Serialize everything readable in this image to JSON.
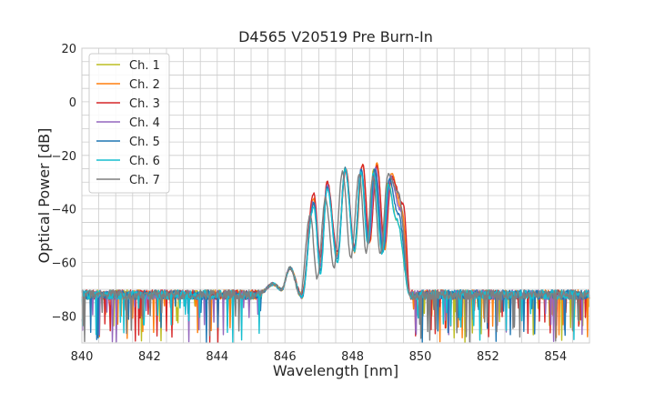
{
  "chart_data": {
    "type": "line",
    "title": "D4565 V20519 Pre Burn-In",
    "xlabel": "Wavelength [nm]",
    "ylabel": "Optical Power [dB]",
    "xlim": [
      840,
      855
    ],
    "ylim": [
      -90,
      20
    ],
    "x_ticks": [
      840,
      842,
      844,
      846,
      848,
      850,
      852,
      854
    ],
    "y_ticks": [
      20,
      0,
      -20,
      -40,
      -60,
      -80
    ],
    "x_tick_labels": [
      "840",
      "842",
      "844",
      "846",
      "848",
      "850",
      "852",
      "854"
    ],
    "y_tick_labels": [
      "20",
      "0",
      "−20",
      "−40",
      "−60",
      "−80"
    ],
    "x_minor_step": 0.5,
    "y_minor_step": 5,
    "grid": true,
    "legend_position": "top-left",
    "noise_floor_db": -72,
    "series": [
      {
        "name": "Ch. 1",
        "color": "#bcbd22",
        "peaks": [
          [
            845.65,
            -68
          ],
          [
            846.15,
            -62
          ],
          [
            846.85,
            -38
          ],
          [
            847.25,
            -31
          ],
          [
            847.78,
            -25
          ],
          [
            848.25,
            -26
          ],
          [
            848.62,
            -25
          ],
          [
            849.05,
            -30
          ],
          [
            849.3,
            -44
          ]
        ],
        "dips": [
          [
            845.9,
            -70
          ],
          [
            846.5,
            -73
          ],
          [
            847.05,
            -62
          ],
          [
            847.55,
            -58
          ],
          [
            848.05,
            -55
          ],
          [
            848.45,
            -51
          ],
          [
            848.88,
            -55
          ]
        ]
      },
      {
        "name": "Ch. 2",
        "color": "#ff7f0e",
        "peaks": [
          [
            845.65,
            -68
          ],
          [
            846.15,
            -62
          ],
          [
            846.85,
            -36
          ],
          [
            847.25,
            -30
          ],
          [
            847.8,
            -25
          ],
          [
            848.3,
            -23
          ],
          [
            848.72,
            -23
          ],
          [
            849.15,
            -27
          ],
          [
            849.45,
            -40
          ]
        ],
        "dips": [
          [
            845.9,
            -70
          ],
          [
            846.5,
            -72
          ],
          [
            847.05,
            -60
          ],
          [
            847.55,
            -57
          ],
          [
            848.05,
            -56
          ],
          [
            848.5,
            -53
          ],
          [
            848.95,
            -55
          ]
        ]
      },
      {
        "name": "Ch. 3",
        "color": "#d62728",
        "peaks": [
          [
            845.65,
            -68
          ],
          [
            846.15,
            -62
          ],
          [
            846.85,
            -34
          ],
          [
            847.25,
            -30
          ],
          [
            847.8,
            -25
          ],
          [
            848.3,
            -23
          ],
          [
            848.72,
            -24
          ],
          [
            849.15,
            -28
          ],
          [
            849.5,
            -38
          ]
        ],
        "dips": [
          [
            845.9,
            -70
          ],
          [
            846.5,
            -72
          ],
          [
            847.05,
            -58
          ],
          [
            847.55,
            -56
          ],
          [
            848.05,
            -54
          ],
          [
            848.5,
            -52
          ],
          [
            848.95,
            -53
          ]
        ]
      },
      {
        "name": "Ch. 4",
        "color": "#9467bd",
        "peaks": [
          [
            845.65,
            -68
          ],
          [
            846.15,
            -62
          ],
          [
            846.85,
            -37
          ],
          [
            847.25,
            -31
          ],
          [
            847.78,
            -25
          ],
          [
            848.25,
            -25
          ],
          [
            848.68,
            -25
          ],
          [
            849.12,
            -28
          ],
          [
            849.4,
            -40
          ]
        ],
        "dips": [
          [
            845.9,
            -70
          ],
          [
            846.5,
            -73
          ],
          [
            847.05,
            -61
          ],
          [
            847.55,
            -58
          ],
          [
            848.05,
            -55
          ],
          [
            848.48,
            -52
          ],
          [
            848.92,
            -55
          ]
        ]
      },
      {
        "name": "Ch. 5",
        "color": "#1f77b4",
        "peaks": [
          [
            845.65,
            -68
          ],
          [
            846.15,
            -62
          ],
          [
            846.85,
            -38
          ],
          [
            847.25,
            -32
          ],
          [
            847.78,
            -25
          ],
          [
            848.25,
            -25
          ],
          [
            848.65,
            -25
          ],
          [
            849.08,
            -29
          ],
          [
            849.35,
            -42
          ]
        ],
        "dips": [
          [
            845.9,
            -70
          ],
          [
            846.5,
            -73
          ],
          [
            847.05,
            -63
          ],
          [
            847.55,
            -59
          ],
          [
            848.05,
            -55
          ],
          [
            848.46,
            -52
          ],
          [
            848.9,
            -56
          ]
        ]
      },
      {
        "name": "Ch. 6",
        "color": "#17becf",
        "peaks": [
          [
            845.65,
            -68
          ],
          [
            846.15,
            -62
          ],
          [
            846.85,
            -39
          ],
          [
            847.25,
            -32
          ],
          [
            847.78,
            -25
          ],
          [
            848.25,
            -26
          ],
          [
            848.62,
            -26
          ],
          [
            849.05,
            -31
          ],
          [
            849.3,
            -44
          ]
        ],
        "dips": [
          [
            845.9,
            -70
          ],
          [
            846.5,
            -73
          ],
          [
            847.05,
            -64
          ],
          [
            847.55,
            -60
          ],
          [
            848.05,
            -56
          ],
          [
            848.45,
            -53
          ],
          [
            848.88,
            -57
          ]
        ]
      },
      {
        "name": "Ch. 7",
        "color": "#7f7f7f",
        "peaks": [
          [
            845.65,
            -68
          ],
          [
            846.15,
            -62
          ],
          [
            846.75,
            -42
          ],
          [
            847.2,
            -36
          ],
          [
            847.7,
            -26
          ],
          [
            848.2,
            -27
          ],
          [
            848.6,
            -28
          ],
          [
            849.05,
            -27
          ],
          [
            849.35,
            -34
          ]
        ],
        "dips": [
          [
            845.9,
            -70
          ],
          [
            846.45,
            -72
          ],
          [
            846.95,
            -66
          ],
          [
            847.45,
            -62
          ],
          [
            847.95,
            -58
          ],
          [
            848.4,
            -56
          ],
          [
            848.82,
            -57
          ]
        ]
      }
    ]
  }
}
